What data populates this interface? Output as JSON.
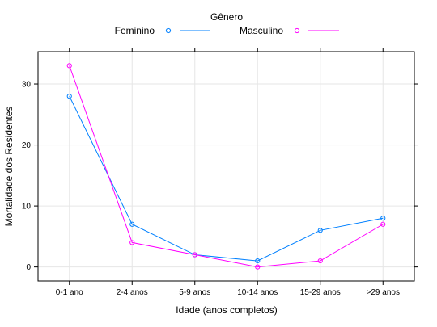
{
  "chart_data": {
    "type": "line",
    "legend": {
      "title": "Gênero",
      "placement": "top",
      "entries": [
        "Feminino",
        "Masculino"
      ]
    },
    "xlabel": "Idade (anos completos)",
    "ylabel": "Mortalidade dos Residentes",
    "categories": [
      "0-1 ano",
      "2-4 anos",
      "5-9 anos",
      "10-14 anos",
      "15-29 anos",
      ">29 anos"
    ],
    "series": [
      {
        "name": "Feminino",
        "values": [
          28,
          7,
          2,
          1,
          6,
          8
        ],
        "color": "#0080ff"
      },
      {
        "name": "Masculino",
        "values": [
          33,
          4,
          2,
          0,
          1,
          7
        ],
        "color": "#ff00ff"
      }
    ],
    "ylim": [
      -2.3,
      35.3
    ],
    "yticks": [
      0,
      10,
      20,
      30
    ],
    "grid": true,
    "markers": "open-circle"
  }
}
